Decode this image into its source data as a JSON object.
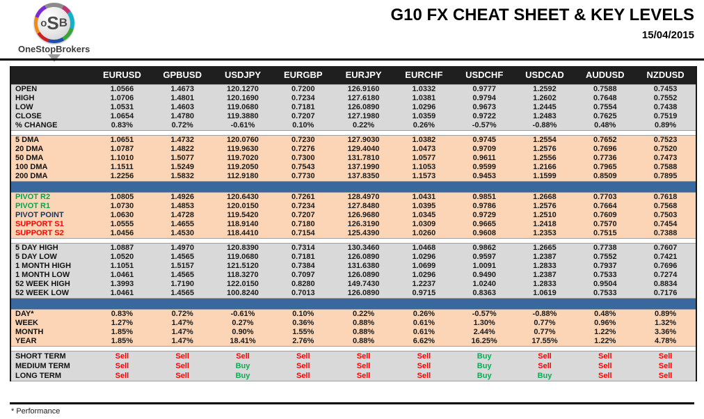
{
  "header": {
    "logo_text_o": "o",
    "logo_text_s": "S",
    "logo_text_b": "B",
    "brand": "OneStopBrokers",
    "title": "G10 FX CHEAT SHEET & KEY LEVELS",
    "date": "15/04/2015"
  },
  "colors": {
    "header_bg": "#1f1f1f",
    "gray_section_bg": "#d9d9d9",
    "peach_section_bg": "#fbd5b5",
    "divider_blue": "#38689e",
    "label_black": "#111111",
    "label_green": "#00a550",
    "label_red": "#ff0000",
    "label_navy": "#16365c",
    "signal_sell": "#ff0000",
    "signal_buy": "#00b050",
    "value_text": "#1a1a1a"
  },
  "table": {
    "columns": [
      "EURUSD",
      "GPBUSD",
      "USDJPY",
      "EURGBP",
      "EURJPY",
      "EURCHF",
      "USDCHF",
      "USDCAD",
      "AUDUSD",
      "NZDUSD"
    ],
    "sections": [
      {
        "id": "ohlc",
        "bg": "gray",
        "divider_after": false,
        "rows": [
          {
            "label": "OPEN",
            "label_color": "black",
            "values": [
              "1.0566",
              "1.4673",
              "120.1270",
              "0.7200",
              "126.9160",
              "1.0332",
              "0.9777",
              "1.2592",
              "0.7588",
              "0.7453"
            ]
          },
          {
            "label": "HIGH",
            "label_color": "black",
            "values": [
              "1.0706",
              "1.4801",
              "120.1690",
              "0.7234",
              "127.6180",
              "1.0381",
              "0.9794",
              "1.2602",
              "0.7648",
              "0.7552"
            ]
          },
          {
            "label": "LOW",
            "label_color": "black",
            "values": [
              "1.0531",
              "1.4603",
              "119.0680",
              "0.7181",
              "126.0890",
              "1.0296",
              "0.9673",
              "1.2445",
              "0.7554",
              "0.7438"
            ]
          },
          {
            "label": "CLOSE",
            "label_color": "black",
            "values": [
              "1.0654",
              "1.4780",
              "119.3880",
              "0.7207",
              "127.1980",
              "1.0359",
              "0.9722",
              "1.2483",
              "0.7625",
              "0.7519"
            ]
          },
          {
            "label": "% CHANGE",
            "label_color": "black",
            "values": [
              "0.83%",
              "0.72%",
              "-0.61%",
              "0.10%",
              "0.22%",
              "0.26%",
              "-0.57%",
              "-0.88%",
              "0.48%",
              "0.89%"
            ]
          }
        ]
      },
      {
        "id": "dma",
        "bg": "peach",
        "divider_after": true,
        "rows": [
          {
            "label": "5 DMA",
            "label_color": "black",
            "values": [
              "1.0651",
              "1.4732",
              "120.0760",
              "0.7230",
              "127.9030",
              "1.0382",
              "0.9745",
              "1.2554",
              "0.7652",
              "0.7523"
            ]
          },
          {
            "label": "20 DMA",
            "label_color": "black",
            "values": [
              "1.0787",
              "1.4822",
              "119.9630",
              "0.7276",
              "129.4040",
              "1.0473",
              "0.9709",
              "1.2576",
              "0.7696",
              "0.7520"
            ]
          },
          {
            "label": "50 DMA",
            "label_color": "black",
            "values": [
              "1.1010",
              "1.5077",
              "119.7020",
              "0.7300",
              "131.7810",
              "1.0577",
              "0.9611",
              "1.2556",
              "0.7736",
              "0.7473"
            ]
          },
          {
            "label": "100 DMA",
            "label_color": "black",
            "values": [
              "1.1511",
              "1.5249",
              "119.2050",
              "0.7543",
              "137.1990",
              "1.1053",
              "0.9599",
              "1.2166",
              "0.7965",
              "0.7588"
            ]
          },
          {
            "label": "200 DMA",
            "label_color": "black",
            "values": [
              "1.2256",
              "1.5832",
              "112.9180",
              "0.7730",
              "137.8350",
              "1.1573",
              "0.9453",
              "1.1599",
              "0.8509",
              "0.7895"
            ]
          }
        ]
      },
      {
        "id": "pivots",
        "bg": "peach",
        "divider_after": false,
        "rows": [
          {
            "label": "PIVOT R2",
            "label_color": "green",
            "values": [
              "1.0805",
              "1.4926",
              "120.6430",
              "0.7261",
              "128.4970",
              "1.0431",
              "0.9851",
              "1.2668",
              "0.7703",
              "0.7618"
            ]
          },
          {
            "label": "PIVOT R1",
            "label_color": "green",
            "values": [
              "1.0730",
              "1.4853",
              "120.0150",
              "0.7234",
              "127.8480",
              "1.0395",
              "0.9786",
              "1.2576",
              "0.7664",
              "0.7568"
            ]
          },
          {
            "label": "PIVOT POINT",
            "label_color": "navy",
            "values": [
              "1.0630",
              "1.4728",
              "119.5420",
              "0.7207",
              "126.9680",
              "1.0345",
              "0.9729",
              "1.2510",
              "0.7609",
              "0.7503"
            ]
          },
          {
            "label": "SUPPORT S1",
            "label_color": "red",
            "values": [
              "1.0555",
              "1.4655",
              "118.9140",
              "0.7180",
              "126.3190",
              "1.0309",
              "0.9665",
              "1.2418",
              "0.7570",
              "0.7454"
            ]
          },
          {
            "label": "SUPPORT S2",
            "label_color": "red",
            "values": [
              "1.0456",
              "1.4530",
              "118.4410",
              "0.7154",
              "125.4390",
              "1.0260",
              "0.9608",
              "1.2353",
              "0.7515",
              "0.7388"
            ]
          }
        ]
      },
      {
        "id": "ranges",
        "bg": "gray",
        "divider_after": true,
        "rows": [
          {
            "label": "5 DAY HIGH",
            "label_color": "black",
            "values": [
              "1.0887",
              "1.4970",
              "120.8390",
              "0.7314",
              "130.3460",
              "1.0468",
              "0.9862",
              "1.2665",
              "0.7738",
              "0.7607"
            ]
          },
          {
            "label": "5 DAY LOW",
            "label_color": "black",
            "values": [
              "1.0520",
              "1.4565",
              "119.0680",
              "0.7181",
              "126.0890",
              "1.0296",
              "0.9597",
              "1.2387",
              "0.7552",
              "0.7421"
            ]
          },
          {
            "label": "1 MONTH HIGH",
            "label_color": "black",
            "values": [
              "1.1051",
              "1.5157",
              "121.5120",
              "0.7384",
              "131.6380",
              "1.0699",
              "1.0091",
              "1.2833",
              "0.7937",
              "0.7696"
            ]
          },
          {
            "label": "1 MONTH LOW",
            "label_color": "black",
            "values": [
              "1.0461",
              "1.4565",
              "118.3270",
              "0.7097",
              "126.0890",
              "1.0296",
              "0.9490",
              "1.2387",
              "0.7533",
              "0.7274"
            ]
          },
          {
            "label": "52 WEEK HIGH",
            "label_color": "black",
            "values": [
              "1.3993",
              "1.7190",
              "122.0150",
              "0.8280",
              "149.7430",
              "1.2237",
              "1.0240",
              "1.2833",
              "0.9504",
              "0.8834"
            ]
          },
          {
            "label": "52 WEEK LOW",
            "label_color": "black",
            "values": [
              "1.0461",
              "1.4565",
              "100.8240",
              "0.7013",
              "126.0890",
              "0.9715",
              "0.8363",
              "1.0619",
              "0.7533",
              "0.7176"
            ]
          }
        ]
      },
      {
        "id": "performance",
        "bg": "peach",
        "divider_after": false,
        "rows": [
          {
            "label": "DAY*",
            "label_color": "black",
            "values": [
              "0.83%",
              "0.72%",
              "-0.61%",
              "0.10%",
              "0.22%",
              "0.26%",
              "-0.57%",
              "-0.88%",
              "0.48%",
              "0.89%"
            ]
          },
          {
            "label": "WEEK",
            "label_color": "black",
            "values": [
              "1.27%",
              "1.47%",
              "0.27%",
              "0.36%",
              "0.88%",
              "0.61%",
              "1.30%",
              "0.77%",
              "0.96%",
              "1.32%"
            ]
          },
          {
            "label": "MONTH",
            "label_color": "black",
            "values": [
              "1.85%",
              "1.47%",
              "0.90%",
              "1.55%",
              "0.88%",
              "0.61%",
              "2.44%",
              "0.77%",
              "1.22%",
              "3.36%"
            ]
          },
          {
            "label": "YEAR",
            "label_color": "black",
            "values": [
              "1.85%",
              "1.47%",
              "18.41%",
              "2.76%",
              "0.88%",
              "6.62%",
              "16.25%",
              "17.55%",
              "1.22%",
              "4.78%"
            ]
          }
        ]
      },
      {
        "id": "signals",
        "bg": "gray",
        "divider_after": false,
        "signals": true,
        "rows": [
          {
            "label": "SHORT TERM",
            "label_color": "black",
            "values": [
              "Sell",
              "Sell",
              "Sell",
              "Sell",
              "Sell",
              "Sell",
              "Buy",
              "Sell",
              "Sell",
              "Sell"
            ]
          },
          {
            "label": "MEDIUM TERM",
            "label_color": "black",
            "values": [
              "Sell",
              "Sell",
              "Buy",
              "Sell",
              "Sell",
              "Sell",
              "Buy",
              "Sell",
              "Sell",
              "Sell"
            ]
          },
          {
            "label": "LONG TERM",
            "label_color": "black",
            "values": [
              "Sell",
              "Sell",
              "Buy",
              "Sell",
              "Sell",
              "Sell",
              "Buy",
              "Buy",
              "Sell",
              "Sell"
            ]
          }
        ]
      }
    ]
  },
  "footer": {
    "note": "* Performance"
  }
}
